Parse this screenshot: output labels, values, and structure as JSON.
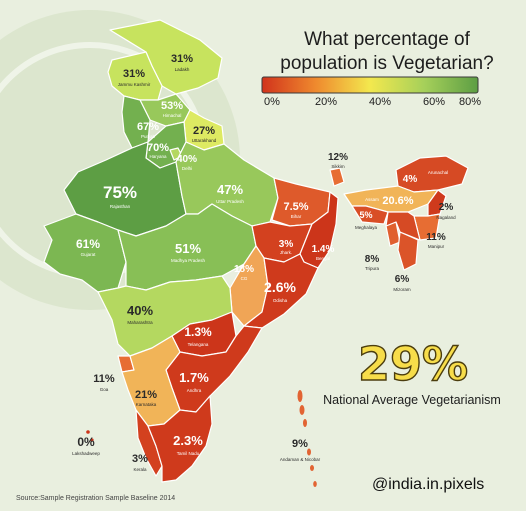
{
  "title_line1": "What percentage of",
  "title_line2": "population is Vegetarian?",
  "legend": {
    "ticks": [
      "0%",
      "20%",
      "40%",
      "60%",
      "80%"
    ],
    "gradient": [
      "#d1331c",
      "#ef8a2e",
      "#f3e84e",
      "#a6d05a",
      "#5d9e44"
    ]
  },
  "national": {
    "value": "29%",
    "caption": "National Average Vegetarianism"
  },
  "handle": "@india.in.pixels",
  "source": "Source:Sample Registration Sample Baseline 2014",
  "colors": {
    "c75": "#5d9e44",
    "c67": "#73b04f",
    "c61": "#7cb752",
    "c51": "#88bf56",
    "c47": "#98c85b",
    "c40": "#b4d860",
    "c31": "#c7e35e",
    "c27": "#ddea62",
    "c21": "#f1b458",
    "c18": "#f0a556",
    "c12": "#e76d33",
    "c11": "#e76d33",
    "c9": "#e26433",
    "c8": "#e0602f",
    "c7": "#de5a2b",
    "c6": "#db5429",
    "c5": "#d94e26",
    "c4": "#d64a24",
    "c3": "#d3411f",
    "c2": "#cf3a1c",
    "c1": "#cc351a",
    "sea": "#e9efdf"
  },
  "states": [
    {
      "name": "Jammu Kashmir",
      "value": "31%",
      "pct": 31
    },
    {
      "name": "Ladakh",
      "value": "31%",
      "pct": 31
    },
    {
      "name": "Himachal",
      "value": "53%",
      "pct": 53
    },
    {
      "name": "Punjab",
      "value": "67%",
      "pct": 67
    },
    {
      "name": "Uttarakhand",
      "value": "27%",
      "pct": 27
    },
    {
      "name": "Haryana",
      "value": "70%",
      "pct": 70
    },
    {
      "name": "Delhi",
      "value": "40%",
      "pct": 40
    },
    {
      "name": "Rajasthan",
      "value": "75%",
      "pct": 75
    },
    {
      "name": "Uttar Pradesh",
      "value": "47%",
      "pct": 47
    },
    {
      "name": "Gujarat",
      "value": "61%",
      "pct": 61
    },
    {
      "name": "Madhya Pradesh",
      "value": "51%",
      "pct": 51
    },
    {
      "name": "Bihar",
      "value": "7.5%",
      "pct": 7.5
    },
    {
      "name": "Sikkim",
      "value": "12%",
      "pct": 12
    },
    {
      "name": "Arunachal",
      "value": "4%",
      "pct": 4
    },
    {
      "name": "Assam",
      "value": "20.6%",
      "pct": 20.6
    },
    {
      "name": "Meghalaya",
      "value": "5%",
      "pct": 5
    },
    {
      "name": "Nagaland",
      "value": "2%",
      "pct": 2
    },
    {
      "name": "Manipur",
      "value": "11%",
      "pct": 11
    },
    {
      "name": "Tripura",
      "value": "8%",
      "pct": 8
    },
    {
      "name": "Mizoram",
      "value": "6%",
      "pct": 6
    },
    {
      "name": "Jhark.",
      "value": "3%",
      "pct": 3
    },
    {
      "name": "Bengal",
      "value": "1.4%",
      "pct": 1.4
    },
    {
      "name": "CG",
      "value": "18%",
      "pct": 18
    },
    {
      "name": "Odisha",
      "value": "2.6%",
      "pct": 2.6
    },
    {
      "name": "Maharashtra",
      "value": "40%",
      "pct": 40
    },
    {
      "name": "Telangana",
      "value": "1.3%",
      "pct": 1.3
    },
    {
      "name": "Andhra",
      "value": "1.7%",
      "pct": 1.7
    },
    {
      "name": "Goa",
      "value": "11%",
      "pct": 11
    },
    {
      "name": "Karnataka",
      "value": "21%",
      "pct": 21
    },
    {
      "name": "Kerala",
      "value": "3%",
      "pct": 3
    },
    {
      "name": "Tamil Nadu",
      "value": "2.3%",
      "pct": 2.3
    },
    {
      "name": "Lakshadweep",
      "value": "0%",
      "pct": 0
    },
    {
      "name": "Andaman & Nicobar",
      "value": "9%",
      "pct": 9
    }
  ]
}
